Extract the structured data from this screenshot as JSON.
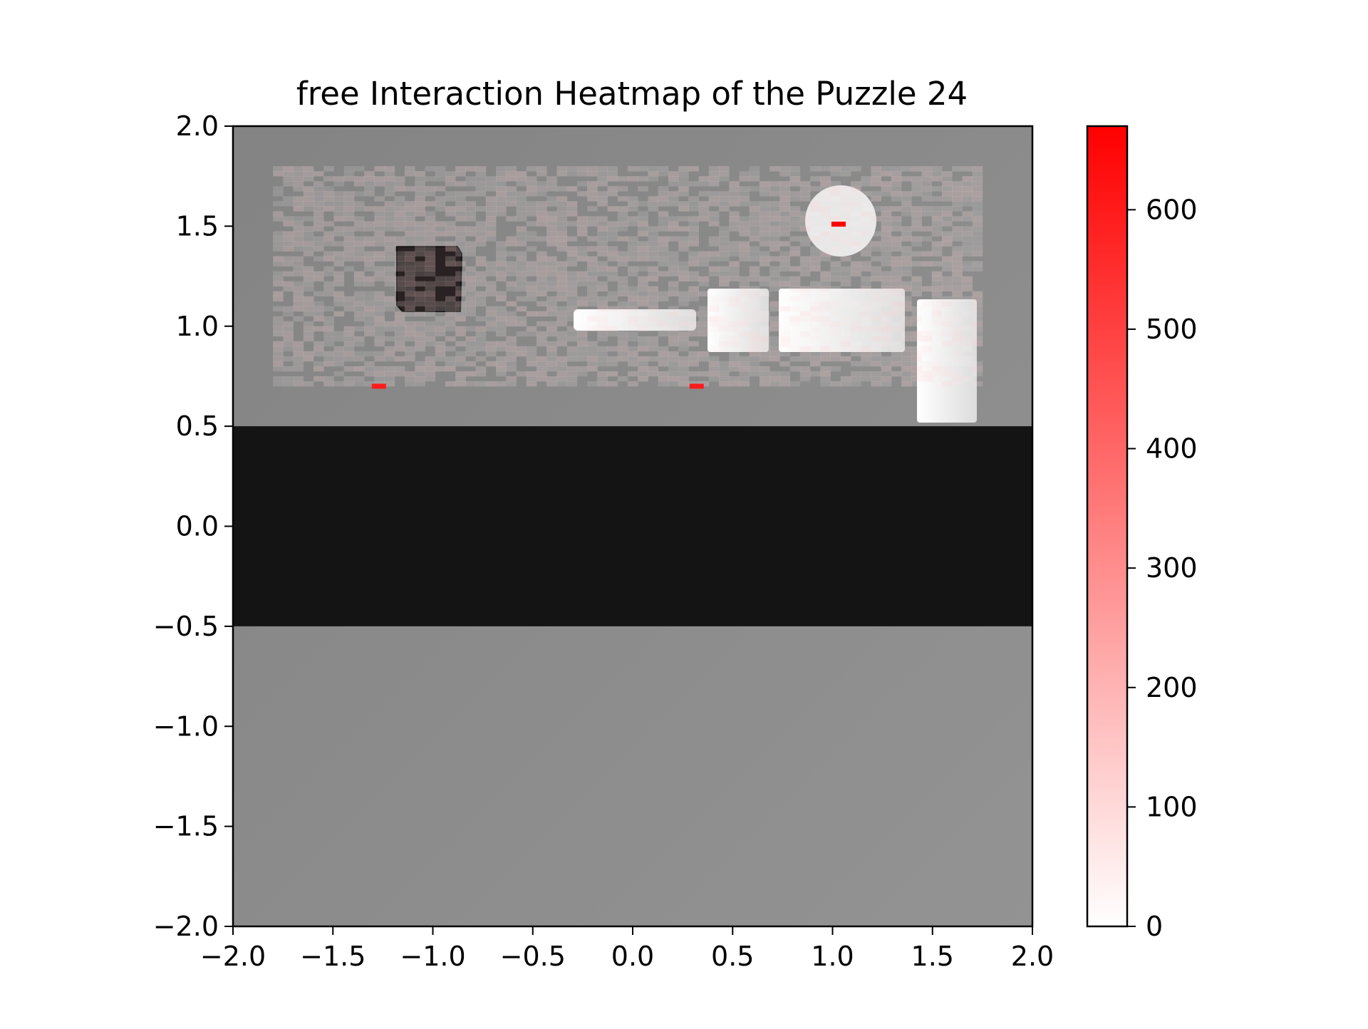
{
  "chart_data": {
    "type": "heatmap",
    "title": "free Interaction Heatmap of the Puzzle 24",
    "xlabel": "",
    "ylabel": "",
    "xlim": [
      -2.0,
      2.0
    ],
    "ylim": [
      -2.0,
      2.0
    ],
    "x_ticks": [
      "−2.0",
      "−1.5",
      "−1.0",
      "−0.5",
      "0.0",
      "0.5",
      "1.0",
      "1.5",
      "2.0"
    ],
    "y_ticks": [
      "2.0",
      "1.5",
      "1.0",
      "0.5",
      "0.0",
      "−0.5",
      "−1.0",
      "−1.5",
      "−2.0"
    ],
    "colorbar": {
      "range": [
        0,
        670
      ],
      "ticks": [
        "0",
        "100",
        "200",
        "300",
        "400",
        "500",
        "600"
      ],
      "color_low": "#ffffff",
      "color_high": "#ff0000"
    },
    "heat_region": {
      "x_range": [
        -1.8,
        1.75
      ],
      "y_range": [
        0.7,
        1.8
      ],
      "typical_value": 60
    },
    "hotspots": [
      {
        "x": 1.03,
        "y": 1.51,
        "value": 670
      },
      {
        "x": -1.27,
        "y": 0.7,
        "value": 600
      },
      {
        "x": 0.32,
        "y": 0.7,
        "value": 600
      }
    ],
    "background": {
      "table_color": "#8c8c8c",
      "dark_band": {
        "y_range": [
          -0.5,
          0.5
        ],
        "color": "#141414"
      },
      "objects": [
        {
          "name": "dark cube",
          "color": "#2a2222"
        },
        {
          "name": "white cylinder"
        },
        {
          "name": "white plank"
        },
        {
          "name": "white boxes"
        }
      ]
    }
  }
}
